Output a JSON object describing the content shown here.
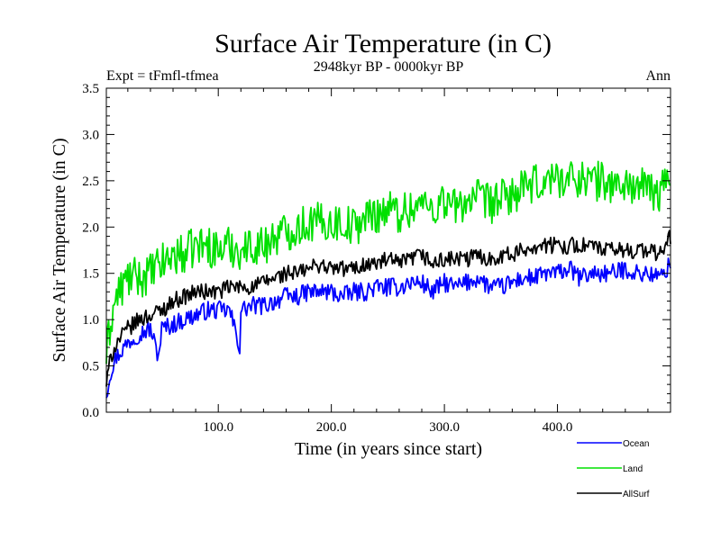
{
  "chart_data": {
    "type": "line",
    "title": "Surface Air Temperature (in C)",
    "subtitle": "2948kyr BP - 0000kyr BP",
    "expt_label": "Expt = tFmfl-tfmea",
    "season_label": "Ann",
    "xlabel": "Time (in years since start)",
    "ylabel": "Surface Air Temperature (in C)",
    "xlim": [
      1,
      500
    ],
    "ylim": [
      0,
      3.5
    ],
    "x_ticks": [
      100,
      200,
      300,
      400
    ],
    "x_tick_labels": [
      "100.0",
      "200.0",
      "300.0",
      "400.0"
    ],
    "y_ticks": [
      0,
      0.5,
      1.0,
      1.5,
      2.0,
      2.5,
      3.0,
      3.5
    ],
    "y_tick_labels": [
      "0.0",
      "0.5",
      "1.0",
      "1.5",
      "2.0",
      "2.5",
      "3.0",
      "3.5"
    ],
    "grid": false,
    "legend_position": "bottom-right, outside plot",
    "series": [
      {
        "name": "Ocean",
        "color": "#0000ff",
        "x": [
          1,
          5,
          10,
          20,
          30,
          40,
          47,
          50,
          60,
          70,
          80,
          90,
          100,
          110,
          119,
          120,
          130,
          140,
          150,
          160,
          170,
          180,
          190,
          200,
          210,
          220,
          230,
          240,
          250,
          260,
          270,
          280,
          290,
          300,
          310,
          320,
          330,
          340,
          350,
          360,
          370,
          380,
          390,
          400,
          410,
          420,
          430,
          440,
          450,
          460,
          470,
          480,
          490,
          500
        ],
        "values": [
          0.2,
          0.45,
          0.6,
          0.75,
          0.85,
          0.9,
          0.6,
          0.9,
          0.95,
          1.0,
          1.05,
          1.1,
          1.1,
          1.1,
          0.7,
          1.1,
          1.15,
          1.15,
          1.2,
          1.25,
          1.25,
          1.3,
          1.3,
          1.3,
          1.25,
          1.3,
          1.3,
          1.35,
          1.35,
          1.35,
          1.4,
          1.4,
          1.3,
          1.4,
          1.35,
          1.4,
          1.45,
          1.35,
          1.35,
          1.4,
          1.45,
          1.45,
          1.5,
          1.5,
          1.55,
          1.45,
          1.5,
          1.5,
          1.5,
          1.55,
          1.5,
          1.5,
          1.45,
          1.6
        ]
      },
      {
        "name": "Land",
        "color": "#00e000",
        "x": [
          1,
          5,
          10,
          20,
          30,
          40,
          50,
          60,
          70,
          80,
          90,
          100,
          110,
          120,
          130,
          140,
          150,
          160,
          170,
          180,
          190,
          200,
          210,
          220,
          230,
          240,
          250,
          260,
          270,
          280,
          290,
          300,
          310,
          320,
          330,
          340,
          350,
          360,
          370,
          380,
          390,
          400,
          410,
          420,
          430,
          440,
          450,
          460,
          470,
          480,
          490,
          500
        ],
        "values": [
          0.6,
          1.0,
          1.25,
          1.45,
          1.45,
          1.5,
          1.6,
          1.7,
          1.7,
          1.8,
          1.8,
          1.75,
          1.8,
          1.75,
          1.8,
          1.8,
          1.9,
          1.95,
          2.0,
          2.05,
          2.05,
          2.05,
          2.05,
          2.0,
          2.1,
          2.15,
          2.2,
          2.15,
          2.2,
          2.25,
          2.2,
          2.3,
          2.2,
          2.3,
          2.3,
          2.25,
          2.3,
          2.35,
          2.4,
          2.45,
          2.5,
          2.55,
          2.5,
          2.55,
          2.5,
          2.5,
          2.45,
          2.45,
          2.45,
          2.4,
          2.35,
          2.6
        ]
      },
      {
        "name": "AllSurf",
        "color": "#000000",
        "x": [
          1,
          5,
          10,
          20,
          30,
          40,
          50,
          60,
          70,
          80,
          90,
          100,
          110,
          120,
          130,
          140,
          150,
          160,
          170,
          180,
          190,
          200,
          210,
          220,
          230,
          240,
          250,
          260,
          270,
          280,
          290,
          300,
          310,
          320,
          330,
          340,
          350,
          360,
          370,
          380,
          390,
          400,
          410,
          420,
          430,
          440,
          450,
          460,
          470,
          480,
          490,
          500
        ],
        "values": [
          0.3,
          0.6,
          0.75,
          0.9,
          1.0,
          1.05,
          1.1,
          1.2,
          1.25,
          1.3,
          1.3,
          1.3,
          1.35,
          1.35,
          1.35,
          1.4,
          1.45,
          1.5,
          1.5,
          1.55,
          1.6,
          1.55,
          1.55,
          1.55,
          1.6,
          1.6,
          1.65,
          1.6,
          1.65,
          1.7,
          1.6,
          1.65,
          1.65,
          1.65,
          1.7,
          1.65,
          1.7,
          1.7,
          1.75,
          1.8,
          1.8,
          1.8,
          1.8,
          1.8,
          1.8,
          1.75,
          1.75,
          1.75,
          1.75,
          1.75,
          1.7,
          1.9
        ]
      }
    ]
  }
}
